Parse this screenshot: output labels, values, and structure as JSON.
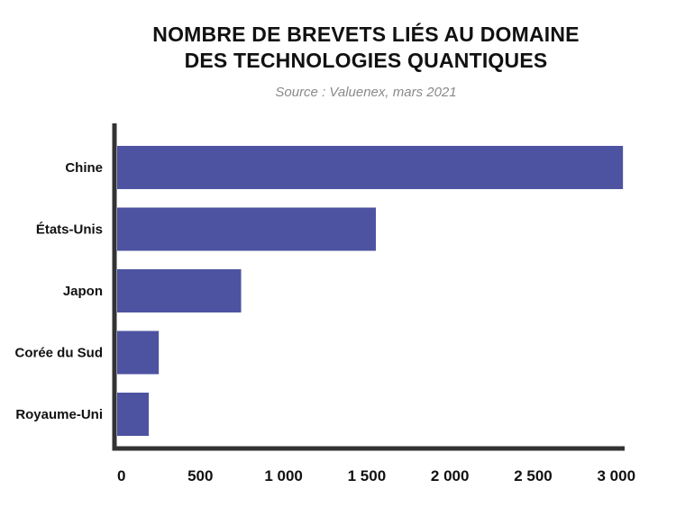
{
  "header": {
    "title_line1": "NOMBRE DE BREVETS LIÉS AU DOMAINE",
    "title_line2": "DES TECHNOLOGIES QUANTIQUES",
    "source": "Source : Valuenex, mars 2021"
  },
  "colors": {
    "bar": "#4d53a1",
    "axis": "#333333"
  },
  "chart_data": {
    "type": "bar",
    "orientation": "horizontal",
    "title": "NOMBRE DE BREVETS LIÉS AU DOMAINE DES TECHNOLOGIES QUANTIQUES",
    "subtitle": "Source : Valuenex, mars 2021",
    "categories": [
      "Chine",
      "États-Unis",
      "Japon",
      "Corée du Sud",
      "Royaume-Uni"
    ],
    "values": [
      3040,
      1555,
      745,
      250,
      190
    ],
    "xlim": [
      0,
      3050
    ],
    "xticks": [
      0,
      500,
      1000,
      1500,
      2000,
      2500,
      3000
    ],
    "xtick_labels": [
      "0",
      "500",
      "1 000",
      "1 500",
      "2 000",
      "2 500",
      "3 000"
    ],
    "xlabel": "",
    "ylabel": "",
    "grid": false,
    "legend": "none"
  }
}
